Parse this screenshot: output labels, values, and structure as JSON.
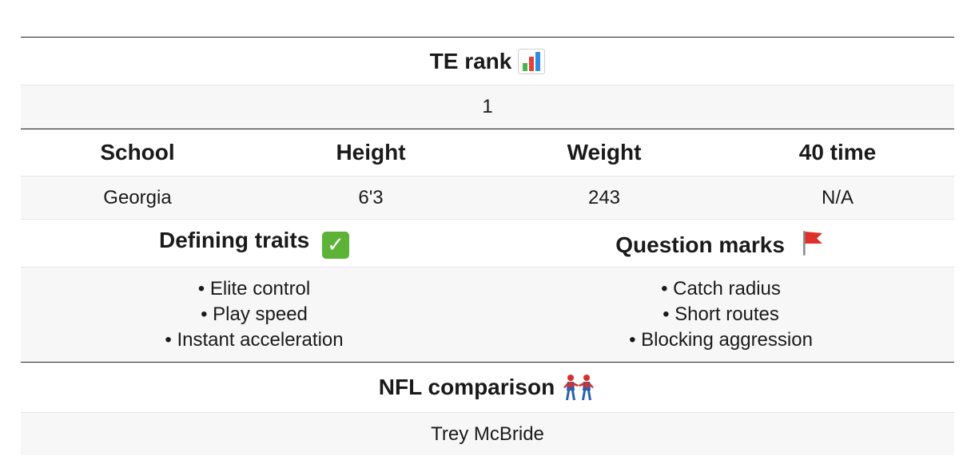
{
  "rank": {
    "header": "TE rank",
    "icon": "bar-chart-icon",
    "value": "1"
  },
  "stats": {
    "headers": [
      "School",
      "Height",
      "Weight",
      "40 time"
    ],
    "values": [
      "Georgia",
      "6'3",
      "243",
      "N/A"
    ]
  },
  "traits": {
    "defining_header": "Defining traits",
    "defining_icon": "check-mark-icon",
    "defining_items": [
      "Elite control",
      "Play speed",
      "Instant acceleration"
    ],
    "question_header": "Question marks",
    "question_icon": "red-flag-icon",
    "question_items": [
      "Catch radius",
      "Short routes",
      "Blocking aggression"
    ]
  },
  "comparison": {
    "header": "NFL comparison",
    "icon": "spiderman-pair-icon",
    "value": "Trey McBride"
  },
  "colors": {
    "rule": "#222222",
    "stripe": "#f7f7f7",
    "check": "#5cb338",
    "flag": "#e0302a"
  }
}
